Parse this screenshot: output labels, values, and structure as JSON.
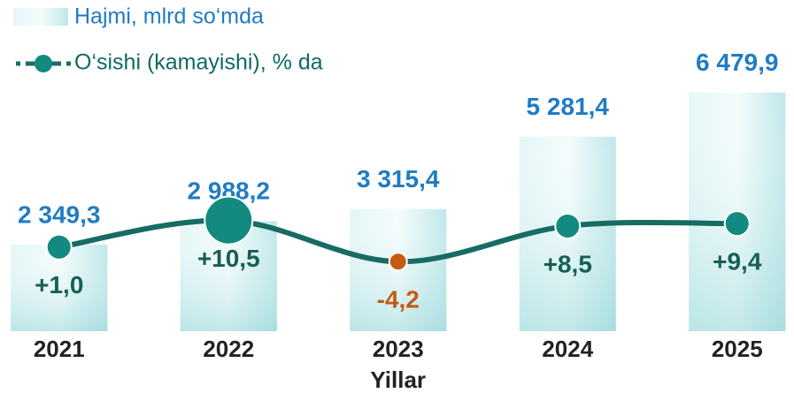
{
  "chart_data": {
    "type": "bar_line",
    "categories": [
      "2021",
      "2022",
      "2023",
      "2024",
      "2025"
    ],
    "x_label": "Yillar",
    "ylim": [
      0,
      7000
    ],
    "y2lim": [
      -29,
      63
    ],
    "series": [
      {
        "name": "Hajmi, mlrd so‘mda",
        "type": "bar",
        "color": "#1f7cc4",
        "values": [
          2349.3,
          2988.2,
          3315.4,
          5281.4,
          6479.9
        ],
        "value_labels": [
          "2 349,3",
          "2 988,2",
          "3 315,4",
          "5 281,4",
          "6 479,9"
        ]
      },
      {
        "name": "O‘sishi (kamayishi), % da",
        "type": "line",
        "axis": "y2",
        "color": "#138a80",
        "negative_color": "#c55a11",
        "values": [
          1.0,
          10.5,
          -4.2,
          8.5,
          9.4
        ],
        "value_labels": [
          "+1,0",
          "+10,5",
          "-4,2",
          "+8,5",
          "+9,4"
        ]
      }
    ]
  }
}
